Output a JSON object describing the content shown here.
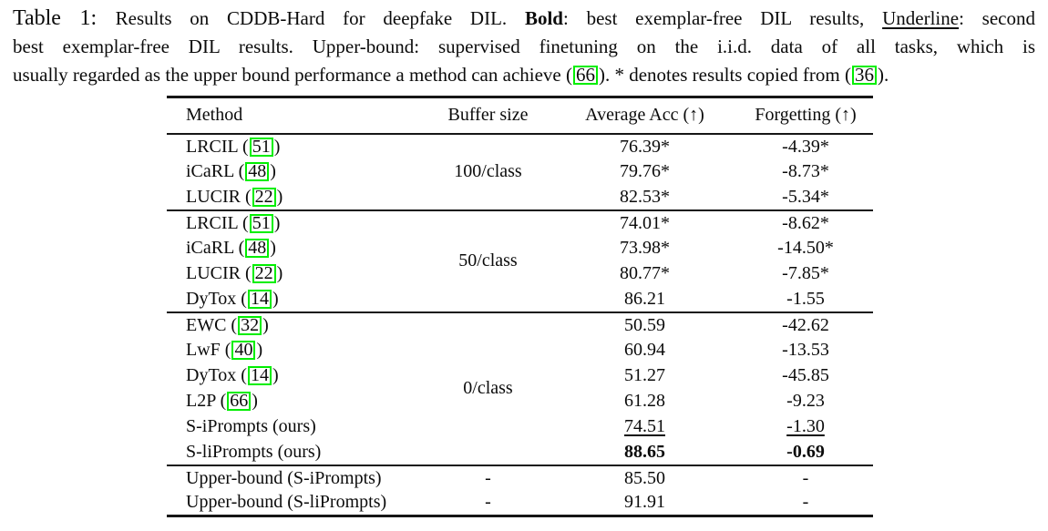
{
  "caption": {
    "label": "Table 1: ",
    "line1_a": "Results on CDDB-Hard for deepfake DIL. ",
    "bold_word": "Bold",
    "line1_b": ": best exemplar-free DIL results, ",
    "underline_word": "Underline",
    "line1_c": ": second",
    "line2": "best exemplar-free DIL results. Upper-bound: supervised finetuning on the i.i.d. data of all tasks, which is",
    "line3_a": "usually regarded as the upper bound performance a method can achieve (",
    "cite_1": "66",
    "line3_b": "). * denotes results copied from (",
    "cite_2": "36",
    "line3_c": ")."
  },
  "table": {
    "headers": [
      "Method",
      "Buffer size",
      "Average Acc (↑)",
      "Forgetting (↑)"
    ],
    "groups": [
      {
        "buffer": "100/class",
        "rows": [
          {
            "method_pre": "LRCIL (",
            "cite": "51",
            "method_post": ")",
            "acc": "76.39*",
            "forgetting": "-4.39*",
            "style": "normal"
          },
          {
            "method_pre": "iCaRL (",
            "cite": "48",
            "method_post": ")",
            "acc": "79.76*",
            "forgetting": "-8.73*",
            "style": "normal"
          },
          {
            "method_pre": "LUCIR (",
            "cite": "22",
            "method_post": ")",
            "acc": "82.53*",
            "forgetting": "-5.34*",
            "style": "normal"
          }
        ]
      },
      {
        "buffer": "50/class",
        "rows": [
          {
            "method_pre": "LRCIL (",
            "cite": "51",
            "method_post": ")",
            "acc": "74.01*",
            "forgetting": "-8.62*",
            "style": "normal"
          },
          {
            "method_pre": "iCaRL (",
            "cite": "48",
            "method_post": ")",
            "acc": "73.98*",
            "forgetting": "-14.50*",
            "style": "normal"
          },
          {
            "method_pre": "LUCIR (",
            "cite": "22",
            "method_post": ")",
            "acc": "80.77*",
            "forgetting": "-7.85*",
            "style": "normal"
          },
          {
            "method_pre": "DyTox (",
            "cite": "14",
            "method_post": ")",
            "acc": "86.21",
            "forgetting": "-1.55",
            "style": "normal"
          }
        ]
      },
      {
        "buffer": "0/class",
        "rows": [
          {
            "method_pre": "EWC (",
            "cite": "32",
            "method_post": ")",
            "acc": "50.59",
            "forgetting": "-42.62",
            "style": "normal"
          },
          {
            "method_pre": "LwF (",
            "cite": "40",
            "method_post": ")",
            "acc": "60.94",
            "forgetting": "-13.53",
            "style": "normal"
          },
          {
            "method_pre": "DyTox (",
            "cite": "14",
            "method_post": ")",
            "acc": "51.27",
            "forgetting": "-45.85",
            "style": "normal"
          },
          {
            "method_pre": "L2P (",
            "cite": "66",
            "method_post": ")",
            "acc": "61.28",
            "forgetting": "-9.23",
            "style": "normal"
          },
          {
            "method_pre": "S-iPrompts (ours)",
            "cite": null,
            "method_post": "",
            "acc": "74.51",
            "forgetting": "-1.30",
            "style": "underline"
          },
          {
            "method_pre": "S-liPrompts (ours)",
            "cite": null,
            "method_post": "",
            "acc": "88.65",
            "forgetting": "-0.69",
            "style": "bold"
          }
        ]
      },
      {
        "buffer": null,
        "rows": [
          {
            "method_pre": "Upper-bound (S-iPrompts)",
            "cite": null,
            "method_post": "",
            "buffer": "-",
            "acc": "85.50",
            "forgetting": "-",
            "style": "normal"
          },
          {
            "method_pre": "Upper-bound (S-liPrompts)",
            "cite": null,
            "method_post": "",
            "buffer": "-",
            "acc": "91.91",
            "forgetting": "-",
            "style": "normal"
          }
        ]
      }
    ]
  },
  "colors": {
    "citation_box": "#00ee00",
    "rule": "#161616",
    "text": "#0b0b0b",
    "background": "#ffffff"
  }
}
